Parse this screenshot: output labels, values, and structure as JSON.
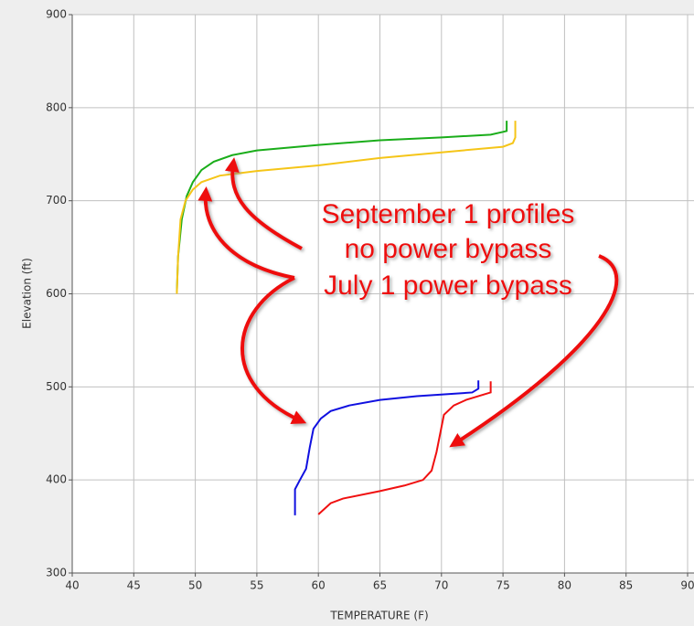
{
  "chart_data": {
    "type": "line",
    "xlabel": "TEMPERATURE (F)",
    "ylabel": "Elevation (ft)",
    "xlim": [
      40,
      90
    ],
    "ylim": [
      300,
      900
    ],
    "xticks": [
      40,
      45,
      50,
      55,
      60,
      65,
      70,
      75,
      80,
      85,
      90
    ],
    "yticks": [
      300,
      400,
      500,
      600,
      700,
      800,
      900
    ],
    "grid": true,
    "annotations": [
      "September 1 profiles",
      "no power bypass",
      "July 1 power bypass"
    ],
    "series": [
      {
        "color": "#1aad1a",
        "x": [
          48.5,
          48.6,
          48.9,
          49.3,
          49.8,
          50.5,
          51.5,
          53,
          55,
          60,
          65,
          70,
          74,
          75,
          75.3,
          75.3
        ],
        "values": [
          602,
          640,
          680,
          705,
          720,
          733,
          742,
          749,
          754,
          760,
          765,
          768,
          771,
          774,
          775,
          786
        ]
      },
      {
        "color": "#f5c518",
        "x": [
          48.5,
          48.6,
          48.8,
          49.2,
          49.8,
          50.5,
          52,
          55,
          60,
          65,
          70,
          75,
          75.8,
          76,
          76
        ],
        "values": [
          600,
          640,
          680,
          700,
          712,
          720,
          727,
          732,
          738,
          746,
          752,
          758,
          762,
          768,
          786
        ]
      },
      {
        "color": "#1010e0",
        "x": [
          58.1,
          58.1,
          58.5,
          59,
          59.3,
          59.6,
          60.2,
          61,
          62.5,
          65,
          68,
          72.5,
          73,
          73
        ],
        "values": [
          362,
          390,
          400,
          412,
          435,
          455,
          466,
          474,
          480,
          486,
          490,
          494,
          498,
          507
        ]
      },
      {
        "color": "#f01010",
        "x": [
          60,
          61,
          62,
          65,
          67,
          68.5,
          69.2,
          69.6,
          69.9,
          70.2,
          71,
          72,
          73.5,
          74,
          74
        ],
        "values": [
          363,
          375,
          380,
          388,
          394,
          400,
          410,
          430,
          450,
          470,
          480,
          486,
          492,
          494,
          506
        ]
      }
    ]
  }
}
